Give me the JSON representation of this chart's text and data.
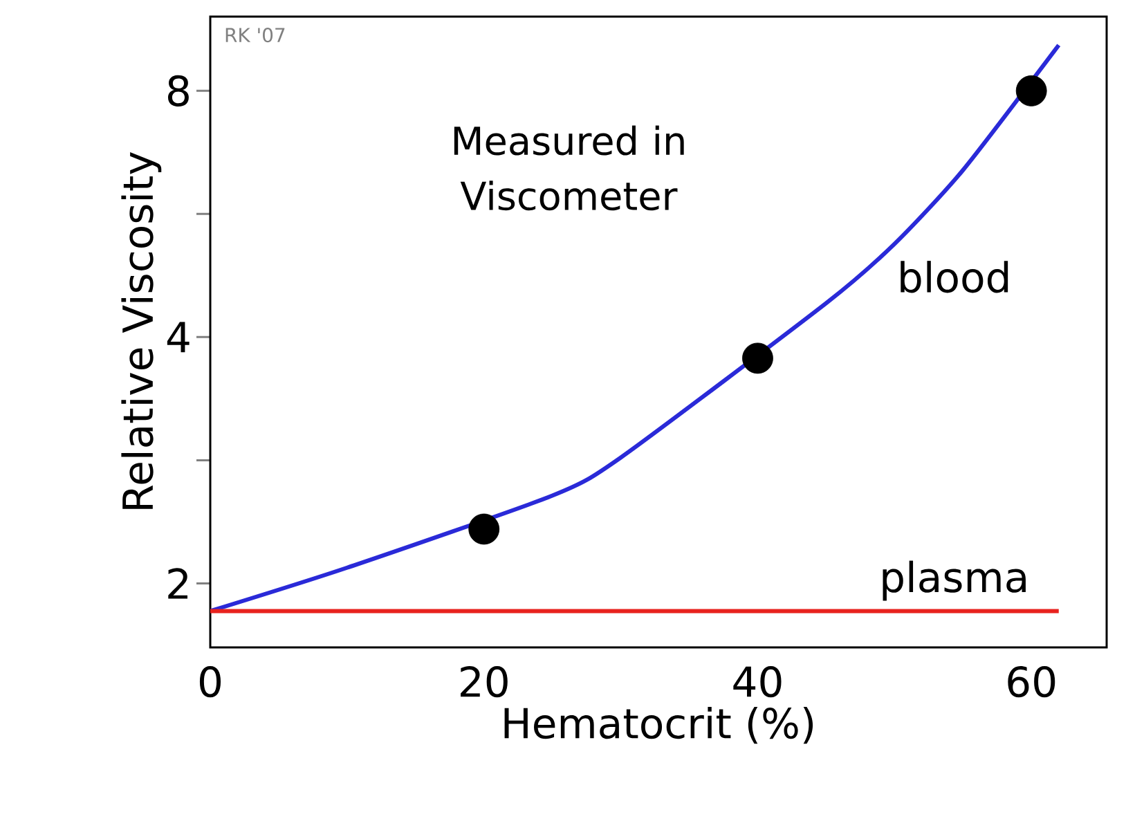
{
  "chart_data": {
    "type": "line",
    "xlabel": "Hematocrit (%)",
    "ylabel": "Relative Viscosity",
    "xlim": [
      0,
      65.5
    ],
    "ylim": [
      1.67,
      9.86
    ],
    "log": "y",
    "xticks": [
      0,
      20,
      40,
      60
    ],
    "yticks": [
      2,
      {
        "value": 2.828,
        "label": null
      },
      4,
      {
        "value": 5.657,
        "label": null
      },
      8
    ],
    "annotations": [
      "Measured in Viscometer",
      "RK '07"
    ],
    "series": [
      {
        "name": "blood",
        "color": "#2a2ad8",
        "x": [
          0,
          10,
          25,
          30,
          45,
          50,
          55,
          62
        ],
        "values": [
          1.85,
          2.09,
          2.56,
          2.85,
          4.4,
          5.2,
          6.4,
          9.1
        ]
      },
      {
        "name": "plasma",
        "color": "#e8231f",
        "x": [
          0,
          62
        ],
        "values": [
          1.85,
          1.85
        ]
      },
      {
        "type": "scatter",
        "color": "#000000",
        "marker": "circle",
        "x": [
          20,
          40,
          60
        ],
        "values": [
          2.33,
          3.77,
          8
        ]
      }
    ]
  }
}
